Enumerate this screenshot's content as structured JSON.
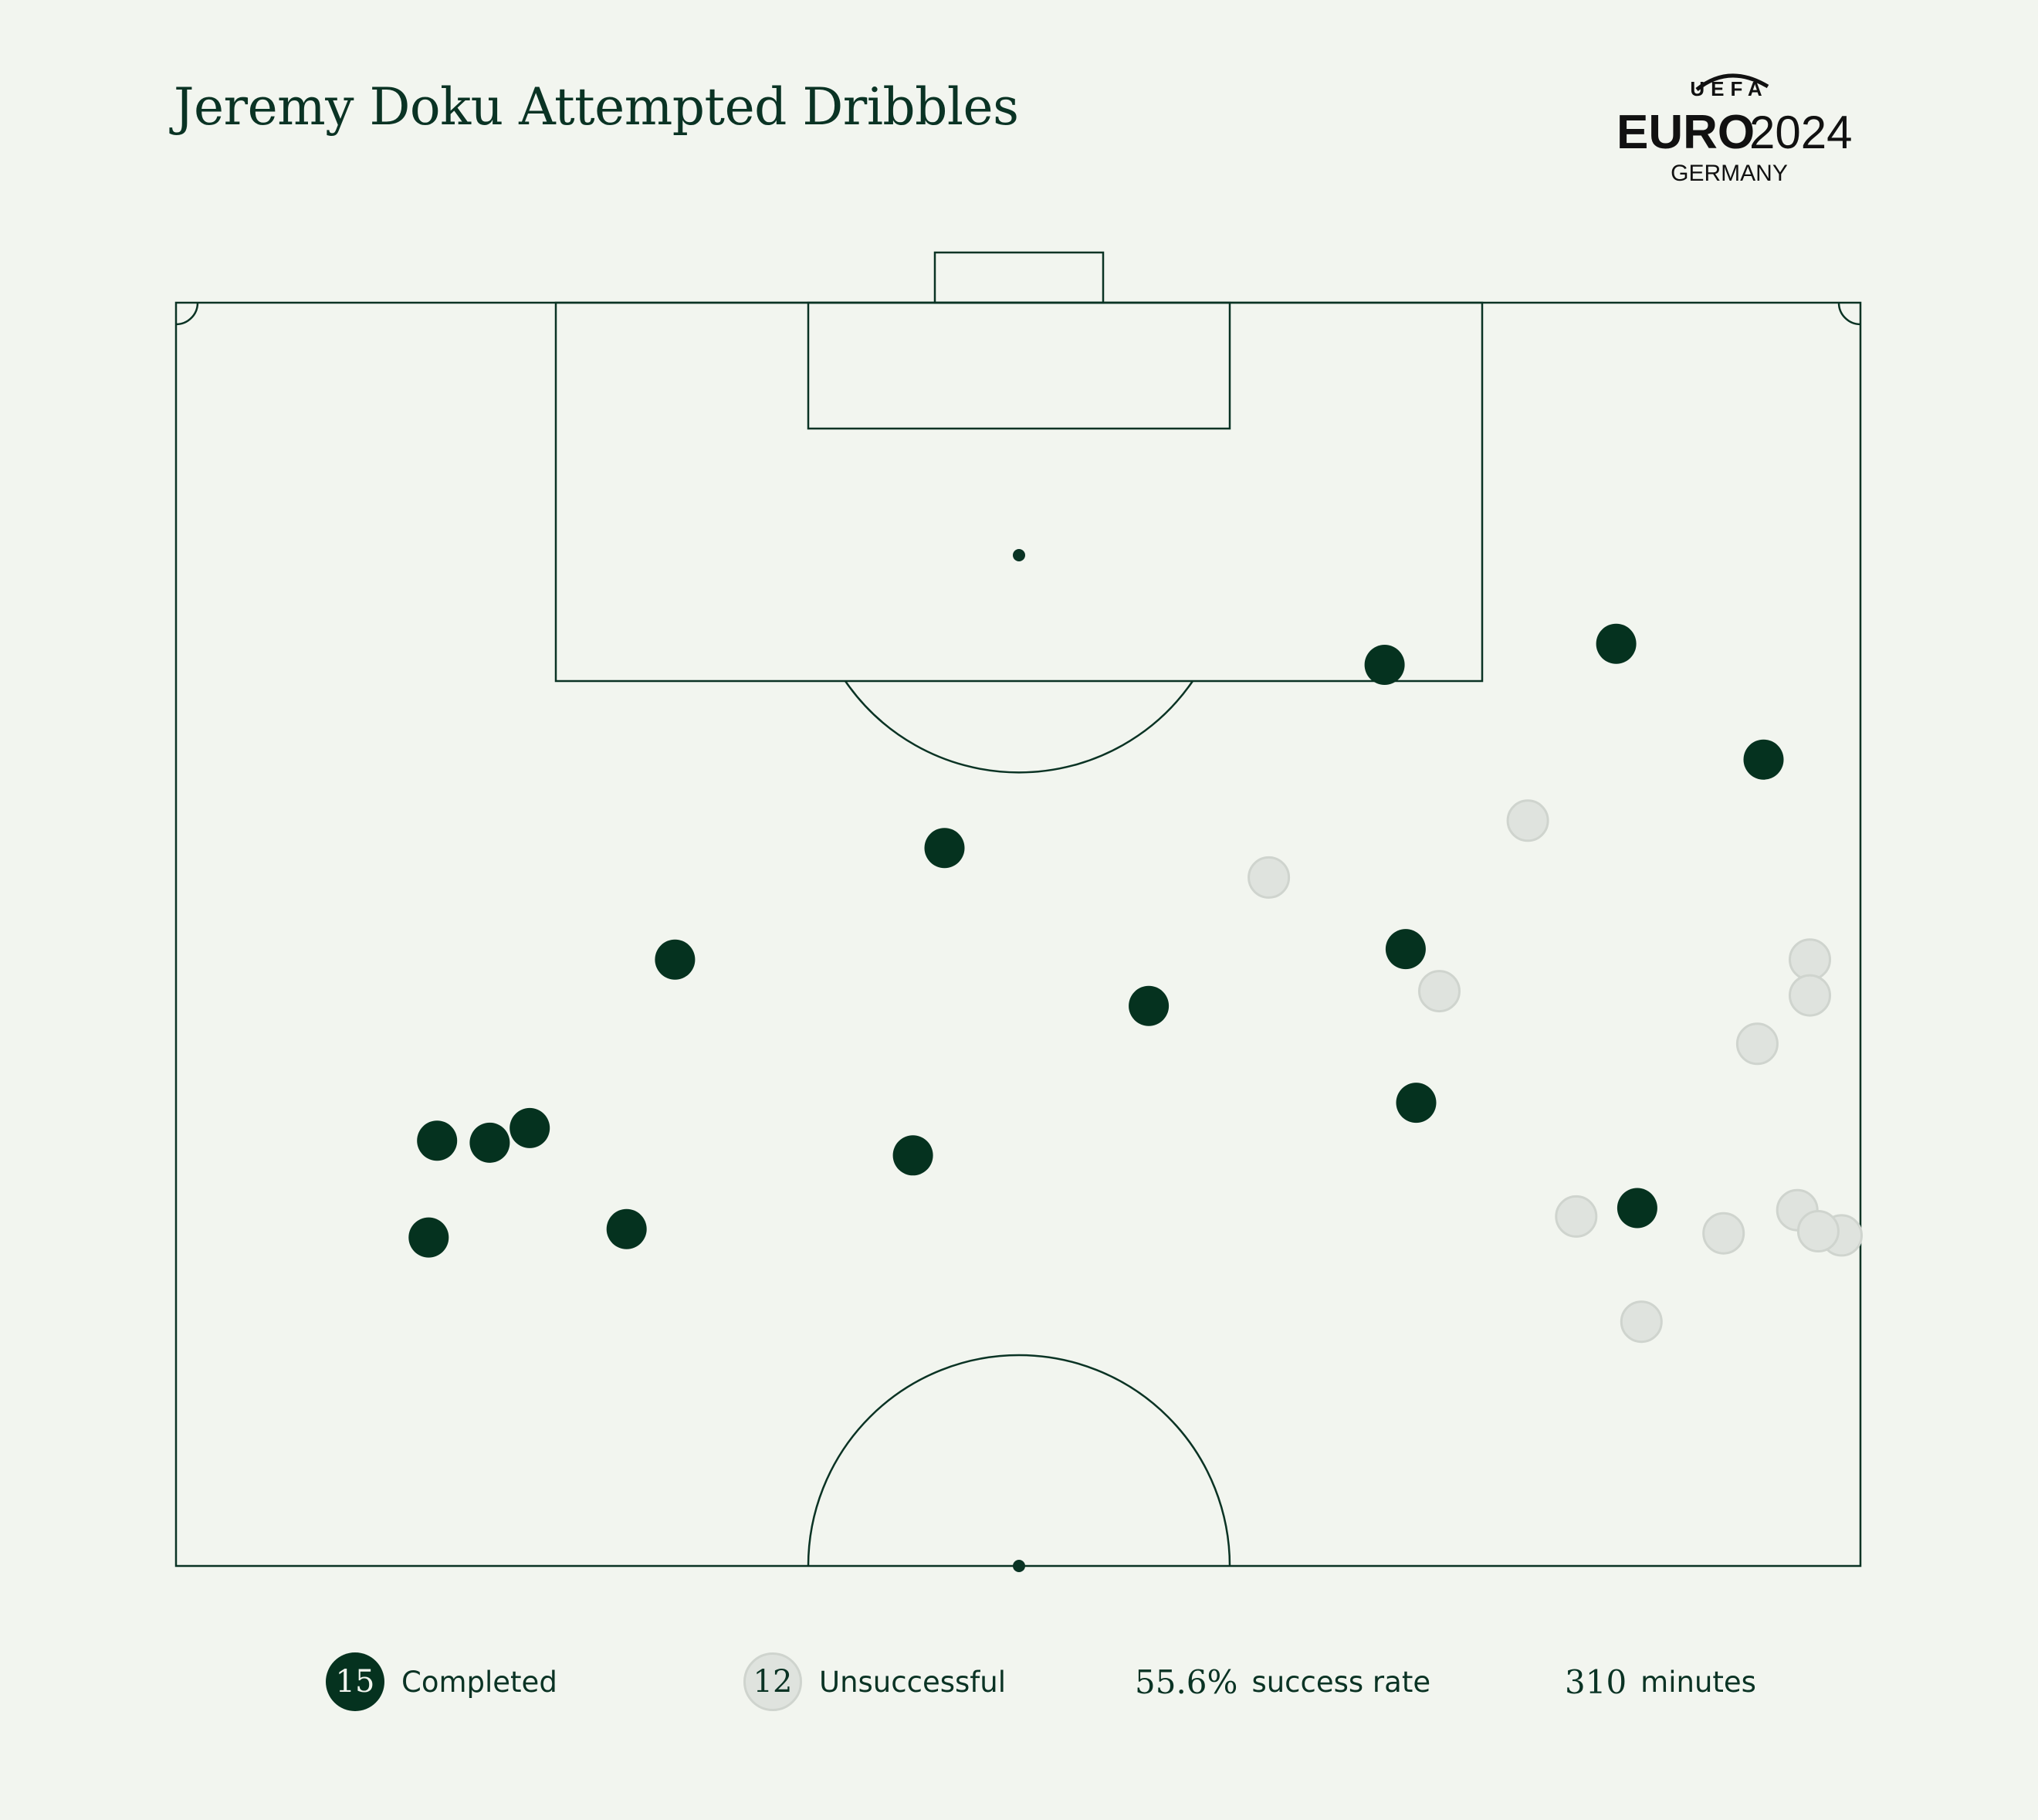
{
  "title": "Jeremy Doku Attempted Dribbles",
  "logo": {
    "top": "UEFA",
    "main_prefix": "EURO",
    "main_year": "2024",
    "sub": "GERMANY"
  },
  "legend": {
    "completed_count": "15",
    "completed_label": "Completed",
    "unsuccessful_count": "12",
    "unsuccessful_label": "Unsuccessful",
    "success_rate_value": "55.6%",
    "success_rate_label": "success rate",
    "minutes_value": "310",
    "minutes_label": "minutes"
  },
  "colors": {
    "background": "#f2f5ef",
    "line": "#0a3324",
    "completed": "#05321f",
    "unsuccessful": "#dfe3de"
  },
  "chart_data": {
    "type": "scatter",
    "series": [
      {
        "name": "Completed",
        "points": [
          [
            80.1,
            14.9
          ],
          [
            82.0,
            58.9
          ],
          [
            94.1,
            36.5
          ],
          [
            86.6,
            46.2
          ],
          [
            89.3,
            58.4
          ],
          [
            102.8,
            57.4
          ],
          [
            103.8,
            68.4
          ],
          [
            98.3,
            75.4
          ],
          [
            77.0,
            69.4
          ],
          [
            79.5,
            35.0
          ],
          [
            80.8,
            16.8
          ],
          [
            76.0,
            21.4
          ],
          [
            75.6,
            12.0
          ],
          [
            80.2,
            12.4
          ],
          [
            88.8,
            23.7
          ]
        ]
      },
      {
        "name": "Unsuccessful",
        "points": [
          [
            95.4,
            64.2
          ],
          [
            92.7,
            51.9
          ],
          [
            87.3,
            60.0
          ],
          [
            84.8,
            75.1
          ],
          [
            88.8,
            77.6
          ],
          [
            76.6,
            66.5
          ],
          [
            71.6,
            69.6
          ],
          [
            75.8,
            73.5
          ],
          [
            75.7,
            79.1
          ],
          [
            76.9,
            77.0
          ],
          [
            75.9,
            78.0
          ],
          [
            87.1,
            77.6
          ]
        ]
      }
    ],
    "xlim": [
      60,
      120
    ],
    "ylim": [
      0,
      80
    ]
  }
}
